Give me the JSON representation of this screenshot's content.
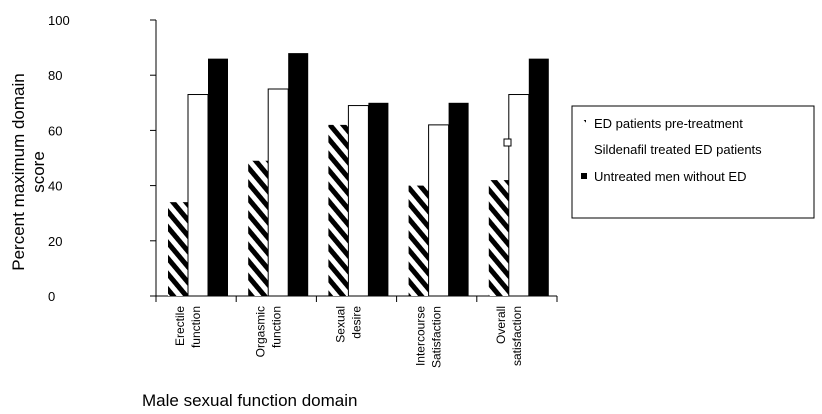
{
  "chart_data": {
    "type": "bar",
    "title": "",
    "ylabel_lines": [
      "Percent maximum domain",
      "score"
    ],
    "xlabel": "Male sexual function domain",
    "ylim": [
      0,
      100
    ],
    "yticks": [
      0,
      20,
      40,
      60,
      80,
      100
    ],
    "grid": false,
    "legend_position": "right",
    "categories": [
      [
        "Erectile",
        "function"
      ],
      [
        "Orgasmic",
        "function"
      ],
      [
        "Sexual",
        "desire"
      ],
      [
        "Intercourse",
        "Satisfaction"
      ],
      [
        "Overall",
        "satisfaction"
      ]
    ],
    "series": [
      {
        "name": "ED patients pre-treatment",
        "pattern": "diagonal-stripes",
        "color": "#000000",
        "values": [
          34,
          49,
          62,
          40,
          42
        ]
      },
      {
        "name": "Sildenafil treated ED patients",
        "pattern": "hollow",
        "color": "#000000",
        "values": [
          73,
          75,
          69,
          62,
          73
        ]
      },
      {
        "name": "Untreated men without ED",
        "pattern": "solid",
        "color": "#000000",
        "values": [
          86,
          88,
          70,
          70,
          86
        ]
      }
    ]
  }
}
